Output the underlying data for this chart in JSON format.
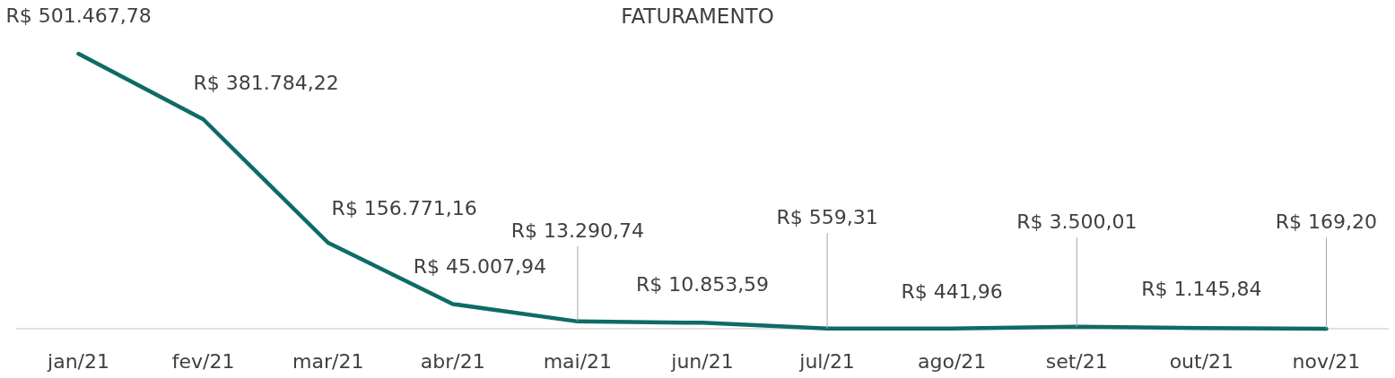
{
  "chart_data": {
    "type": "line",
    "title": "FATURAMENTO",
    "categories": [
      "jan/21",
      "fev/21",
      "mar/21",
      "abr/21",
      "mai/21",
      "jun/21",
      "jul/21",
      "ago/21",
      "set/21",
      "out/21",
      "nov/21"
    ],
    "series": [
      {
        "color": "#0e6b66",
        "values": [
          501467.78,
          381784.22,
          156771.16,
          45007.94,
          13290.74,
          10853.59,
          559.31,
          441.96,
          3500.01,
          1145.84,
          169.2
        ],
        "value_labels": [
          "R$ 501.467,78",
          "R$ 381.784,22",
          "R$ 156.771,16",
          "R$ 45.007,94",
          "R$ 13.290,74",
          "R$ 10.853,59",
          "R$ 559,31",
          "R$ 441,96",
          "R$ 3.500,01",
          "R$ 1.145,84",
          "R$ 169,20"
        ]
      }
    ],
    "marker": "none",
    "line_style": "solid"
  }
}
